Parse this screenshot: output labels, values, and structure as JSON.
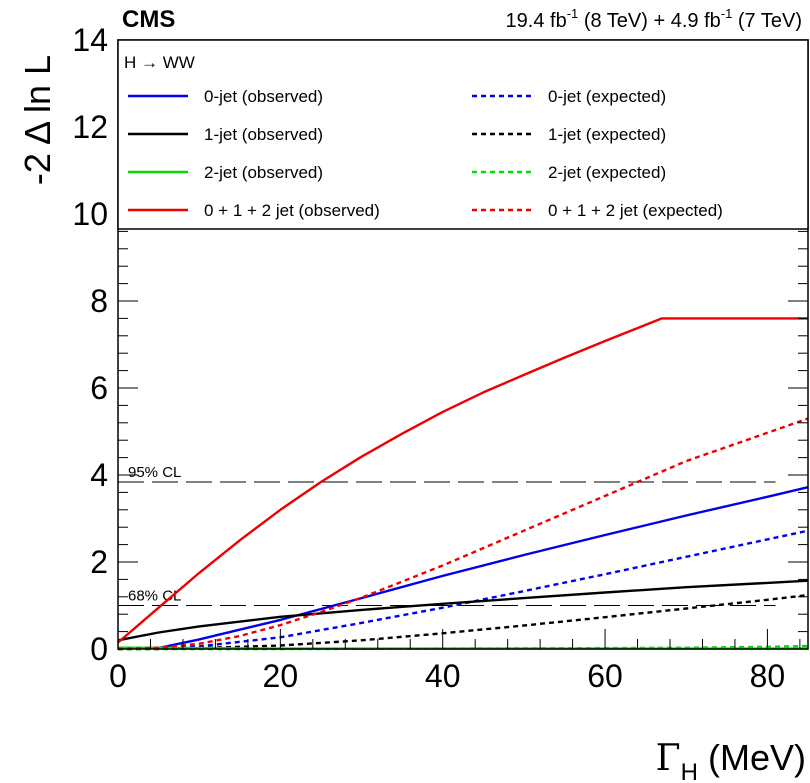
{
  "chart_data": {
    "type": "line",
    "experiment_label": "CMS",
    "luminosity_label": {
      "lumi1": "19.4 fb",
      "exp1": "-1",
      "energy1": " (8 TeV) + 4.9 fb",
      "exp2": "-1",
      "energy2": " (7 TeV)"
    },
    "process_label": "H → WW",
    "xlabel_main": "Γ",
    "xlabel_sub": "H",
    "xlabel_unit": " (MeV)",
    "ylabel": "-2 Δ ln L",
    "xlim": [
      0,
      85
    ],
    "ylim": [
      0,
      14
    ],
    "x_ticks": [
      "0",
      "20",
      "40",
      "60",
      "80"
    ],
    "y_ticks": [
      "0",
      "2",
      "4",
      "6",
      "8",
      "10",
      "12",
      "14"
    ],
    "x_tick_values": [
      0,
      20,
      40,
      60,
      80
    ],
    "y_tick_values": [
      0,
      2,
      4,
      6,
      8,
      10,
      12,
      14
    ],
    "legend_position": "top",
    "cl_lines": [
      {
        "label": "95% CL",
        "y": 3.84,
        "x_end": 81
      },
      {
        "label": "68% CL",
        "y": 1.0,
        "x_end": 81
      }
    ],
    "series": [
      {
        "name": "0-jet (observed)",
        "color": "#0000ee",
        "style": "solid",
        "x": [
          0,
          5,
          10,
          20,
          30,
          40,
          50,
          60,
          70,
          80,
          85
        ],
        "y": [
          0.02,
          0.02,
          0.22,
          0.67,
          1.17,
          1.68,
          2.16,
          2.62,
          3.07,
          3.5,
          3.72
        ]
      },
      {
        "name": "0-jet (expected)",
        "color": "#0000ee",
        "style": "dashed",
        "x": [
          0,
          5,
          10,
          20,
          30,
          40,
          50,
          60,
          70,
          80,
          85
        ],
        "y": [
          0.0,
          0.01,
          0.06,
          0.27,
          0.6,
          0.95,
          1.33,
          1.72,
          2.12,
          2.52,
          2.72
        ]
      },
      {
        "name": "1-jet (observed)",
        "color": "#000000",
        "style": "solid",
        "x": [
          0,
          5,
          10,
          20,
          30,
          40,
          50,
          60,
          70,
          80,
          85
        ],
        "y": [
          0.2,
          0.38,
          0.52,
          0.74,
          0.9,
          1.04,
          1.17,
          1.3,
          1.42,
          1.52,
          1.57
        ]
      },
      {
        "name": "1-jet (expected)",
        "color": "#000000",
        "style": "dashed",
        "x": [
          0,
          5,
          10,
          20,
          30,
          40,
          50,
          60,
          70,
          80,
          85
        ],
        "y": [
          0.0,
          0.0,
          0.02,
          0.08,
          0.2,
          0.36,
          0.54,
          0.73,
          0.93,
          1.13,
          1.24
        ]
      },
      {
        "name": "2-jet (observed)",
        "color": "#00dd00",
        "style": "solid",
        "x": [
          0,
          10,
          20,
          40,
          60,
          85
        ],
        "y": [
          0.03,
          0.02,
          0.01,
          0.01,
          0.01,
          0.01
        ]
      },
      {
        "name": "2-jet (expected)",
        "color": "#00dd00",
        "style": "dashed",
        "x": [
          0,
          20,
          40,
          60,
          70,
          80,
          85
        ],
        "y": [
          0.0,
          0.0,
          0.01,
          0.02,
          0.03,
          0.05,
          0.07
        ]
      },
      {
        "name": "0 + 1 + 2 jet (observed)",
        "color": "#ee0000",
        "style": "solid",
        "x": [
          0,
          5,
          10,
          15,
          20,
          25,
          30,
          35,
          40,
          45,
          50,
          55,
          60,
          65,
          67,
          70,
          75,
          80,
          85
        ],
        "y": [
          0.15,
          0.95,
          1.75,
          2.5,
          3.2,
          3.84,
          4.42,
          4.95,
          5.45,
          5.9,
          6.3,
          6.7,
          7.08,
          7.45,
          7.6,
          7.6,
          7.6,
          7.6,
          7.6
        ]
      },
      {
        "name": "0 + 1 + 2 jet (expected)",
        "color": "#ee0000",
        "style": "dashed",
        "x": [
          0,
          5,
          10,
          15,
          20,
          25,
          30,
          40,
          50,
          60,
          70,
          80,
          85
        ],
        "y": [
          0.0,
          0.03,
          0.12,
          0.3,
          0.55,
          0.85,
          1.18,
          1.92,
          2.72,
          3.52,
          4.32,
          4.97,
          5.3
        ]
      }
    ]
  }
}
